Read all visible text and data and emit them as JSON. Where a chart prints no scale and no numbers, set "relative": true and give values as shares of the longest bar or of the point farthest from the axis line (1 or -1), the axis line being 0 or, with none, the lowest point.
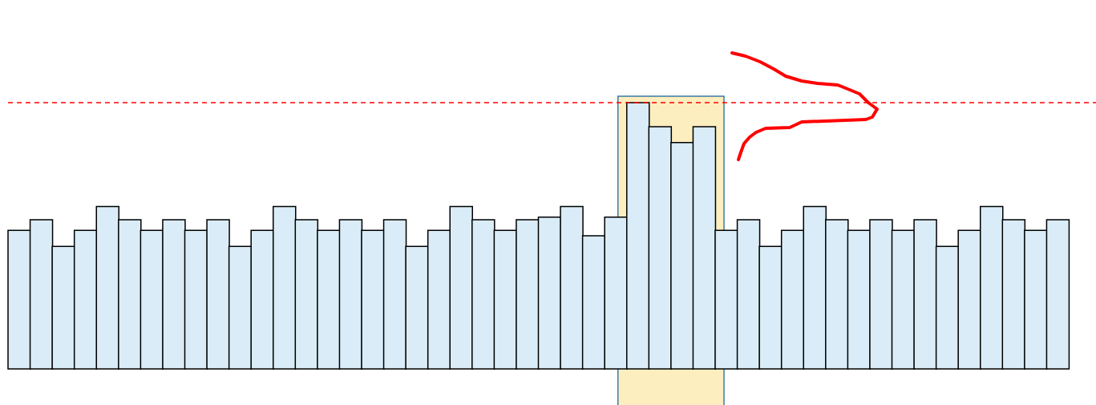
{
  "chart_data": {
    "type": "bar",
    "relative": true,
    "categories": [
      null,
      null,
      null,
      null,
      null,
      null,
      null,
      null,
      null,
      null,
      null,
      null,
      null,
      null,
      null,
      null,
      null,
      null,
      null,
      null,
      null,
      null,
      null,
      null,
      null,
      null,
      null,
      null,
      null,
      null,
      null,
      null,
      null,
      null,
      null,
      null,
      null,
      null,
      null,
      null,
      null,
      null,
      null,
      null,
      null,
      null,
      null,
      null
    ],
    "values": [
      0.52,
      0.56,
      0.46,
      0.52,
      0.61,
      0.56,
      0.52,
      0.56,
      0.52,
      0.56,
      0.46,
      0.52,
      0.61,
      0.56,
      0.52,
      0.56,
      0.52,
      0.56,
      0.46,
      0.52,
      0.61,
      0.56,
      0.52,
      0.56,
      0.57,
      0.61,
      0.5,
      0.57,
      1,
      0.91,
      0.85,
      0.91,
      0.52,
      0.56,
      0.46,
      0.52,
      0.61,
      0.56,
      0.52,
      0.56,
      0.52,
      0.56,
      0.46,
      0.52,
      0.61,
      0.56,
      0.52,
      0.56
    ],
    "color": "#d9ecf7",
    "ref_lines": [
      {
        "axis": "y",
        "value": 1,
        "color": "#ff0000",
        "line_style": "dashed"
      }
    ]
  }
}
